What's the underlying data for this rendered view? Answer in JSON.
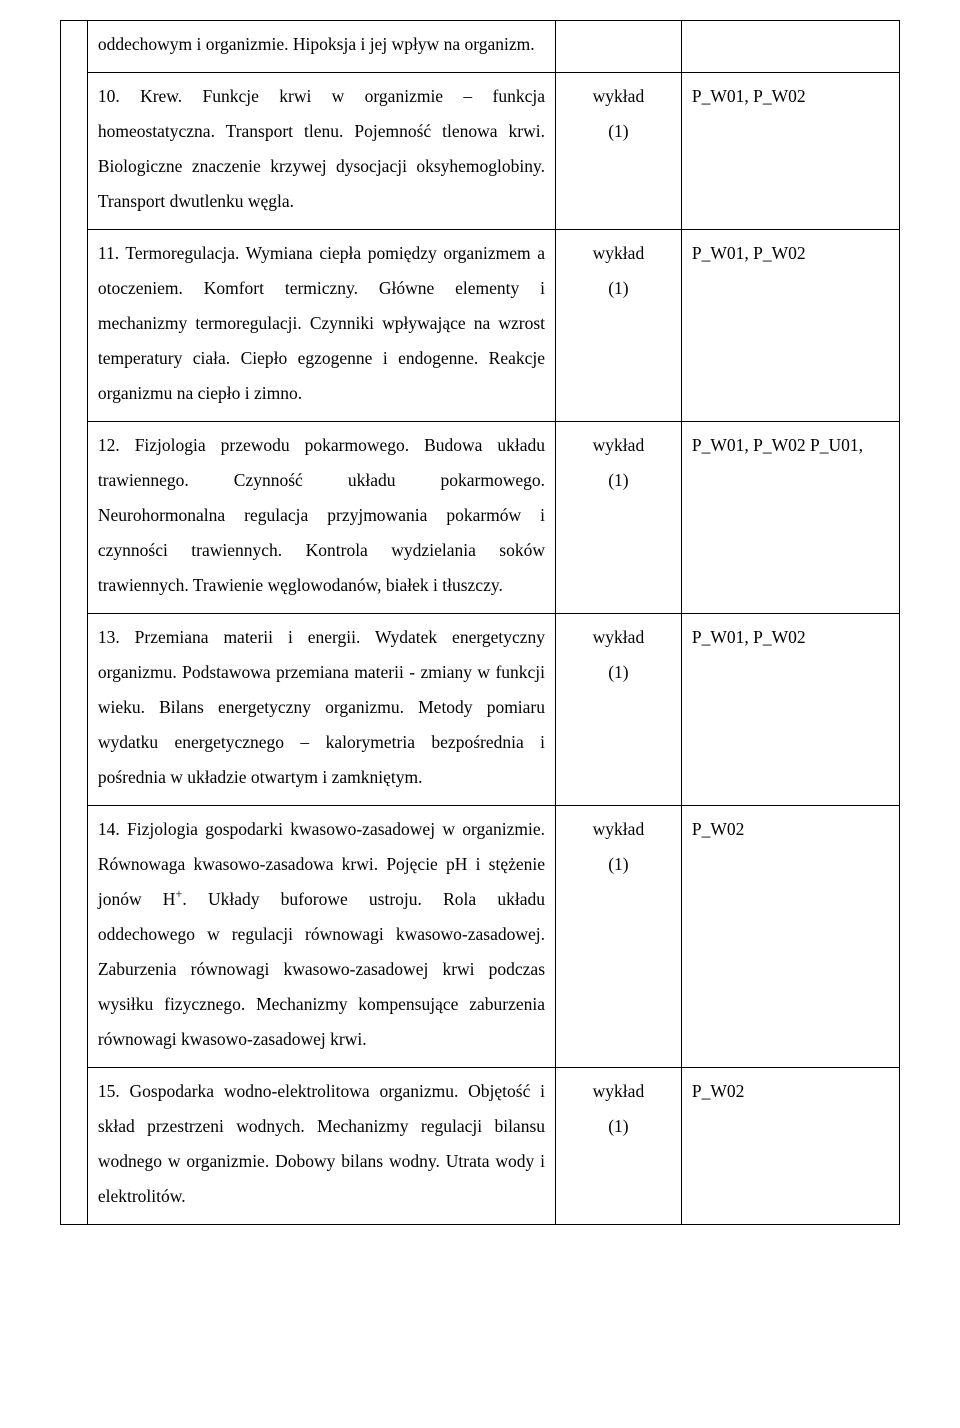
{
  "colors": {
    "text": "#000000",
    "border": "#000000",
    "background": "#ffffff"
  },
  "typography": {
    "font_family": "Times New Roman",
    "font_size_pt": 13,
    "line_height": 2.0
  },
  "table": {
    "column_widths_pct": [
      3.2,
      55.8,
      15,
      26
    ],
    "rows": [
      {
        "desc": "oddechowym i organizmie. Hipoksja i jej wpływ na organizm.",
        "method_line1": "",
        "method_line2": "",
        "outcome": ""
      },
      {
        "desc": "10. Krew. Funkcje krwi w organizmie – funkcja homeostatyczna. Transport tlenu. Pojemność tlenowa krwi. Biologiczne znaczenie krzywej dysocjacji oksyhemoglobiny. Transport dwutlenku węgla.",
        "method_line1": "wykład",
        "method_line2": "(1)",
        "outcome": "P_W01, P_W02"
      },
      {
        "desc": "11. Termoregulacja. Wymiana ciepła pomiędzy organizmem a otoczeniem. Komfort termiczny. Główne elementy i mechanizmy termoregulacji. Czynniki wpływające na wzrost temperatury ciała. Ciepło egzogenne  i endogenne. Reakcje organizmu na ciepło i zimno.",
        "method_line1": "wykład",
        "method_line2": "(1)",
        "outcome": "P_W01, P_W02"
      },
      {
        "desc": "12. Fizjologia przewodu pokarmowego. Budowa układu trawiennego. Czynność układu pokarmowego. Neurohormonalna regulacja przyjmowania pokarmów i czynności trawiennych. Kontrola wydzielania soków trawiennych. Trawienie węglowodanów, białek i tłuszczy.",
        "method_line1": "wykład",
        "method_line2": "(1)",
        "outcome": "P_W01, P_W02 P_U01,"
      },
      {
        "desc": "13. Przemiana materii i energii. Wydatek energetyczny organizmu. Podstawowa przemiana materii - zmiany w funkcji wieku. Bilans energetyczny organizmu. Metody pomiaru wydatku energetycznego – kalorymetria bezpośrednia i pośrednia w układzie otwartym i zamkniętym.",
        "method_line1": "wykład",
        "method_line2": "(1)",
        "outcome": "P_W01, P_W02"
      },
      {
        "desc_html": "14. Fizjologia gospodarki kwasowo-zasadowej w organizmie. Równowaga kwasowo-zasadowa krwi. Pojęcie pH i stężenie jonów H<span class=\"sup\">+</span>. Układy buforowe ustroju. Rola układu oddechowego w regulacji równowagi kwasowo-zasadowej. Zaburzenia równowagi kwasowo-zasadowej krwi podczas wysiłku fizycznego. Mechanizmy kompensujące zaburzenia równowagi kwasowo-zasadowej krwi.",
        "method_line1": "wykład",
        "method_line2": "(1)",
        "outcome": "P_W02"
      },
      {
        "desc": "15. Gospodarka wodno-elektrolitowa organizmu. Objętość i skład przestrzeni wodnych. Mechanizmy regulacji bilansu wodnego w organizmie. Dobowy bilans wodny. Utrata wody i elektrolitów.",
        "method_line1": "wykład",
        "method_line2": "(1)",
        "outcome": "P_W02"
      }
    ]
  }
}
